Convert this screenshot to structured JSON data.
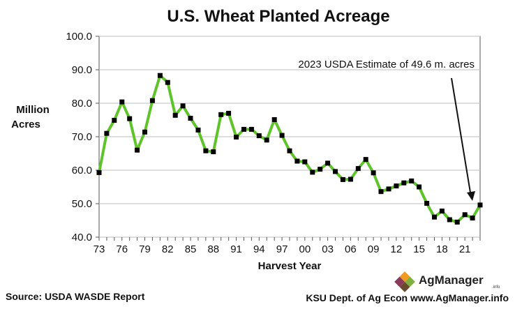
{
  "chart_data": {
    "type": "line",
    "title": "U.S. Wheat Planted Acreage",
    "xlabel": "Harvest Year",
    "ylabel_line1": "Million",
    "ylabel_line2": "Acres",
    "ylim": [
      40,
      100
    ],
    "y_ticks": [
      "40.0",
      "50.0",
      "60.0",
      "70.0",
      "80.0",
      "90.0",
      "100.0"
    ],
    "x_ticks": [
      "73",
      "76",
      "79",
      "82",
      "85",
      "88",
      "91",
      "94",
      "97",
      "00",
      "03",
      "06",
      "09",
      "12",
      "15",
      "18",
      "21"
    ],
    "grid": "horizontal",
    "line_color": "#5ec42a",
    "marker_color": "#000000",
    "series": [
      {
        "x": [
          1973,
          1974,
          1975,
          1976,
          1977,
          1978,
          1979,
          1980,
          1981,
          1982,
          1983,
          1984,
          1985,
          1986,
          1987,
          1988,
          1989,
          1990,
          1991,
          1992,
          1993,
          1994,
          1995,
          1996,
          1997,
          1998,
          1999,
          2000,
          2001,
          2002,
          2003,
          2004,
          2005,
          2006,
          2007,
          2008,
          2009,
          2010,
          2011,
          2012,
          2013,
          2014,
          2015,
          2016,
          2017,
          2018,
          2019,
          2020,
          2021,
          2022,
          2023
        ],
        "values": [
          59.3,
          71.0,
          74.9,
          80.4,
          75.4,
          66.0,
          71.4,
          80.8,
          88.3,
          86.2,
          76.4,
          79.2,
          75.5,
          72.0,
          65.8,
          65.5,
          76.6,
          77.0,
          69.9,
          72.2,
          72.2,
          70.3,
          69.0,
          75.1,
          70.4,
          65.8,
          62.7,
          62.5,
          59.4,
          60.3,
          62.1,
          59.6,
          57.2,
          57.3,
          60.5,
          63.2,
          59.2,
          53.6,
          54.4,
          55.3,
          56.2,
          56.8,
          55.0,
          50.1,
          46.0,
          47.8,
          45.2,
          44.5,
          46.7,
          45.7,
          49.6
        ]
      }
    ],
    "annotation": "2023 USDA Estimate of 49.6 m. acres"
  },
  "footer": {
    "source": "Source:  USDA WASDE Report",
    "credit": "KSU Dept. of Ag Econ  www.AgManager.info"
  },
  "logo": {
    "name": "AgManager",
    "suffix": ".info"
  }
}
